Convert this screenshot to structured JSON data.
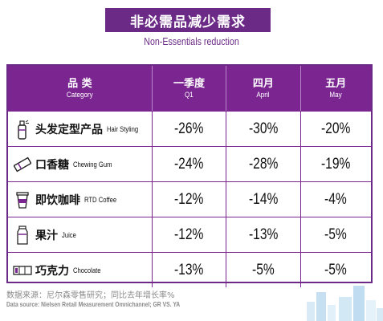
{
  "title": "非必需品减少需求",
  "subtitle": "Non-Essentials reduction",
  "table": {
    "headers": [
      {
        "zh": "品 类",
        "en": "Category"
      },
      {
        "zh": "一季度",
        "en": "Q1"
      },
      {
        "zh": "四月",
        "en": "April"
      },
      {
        "zh": "五月",
        "en": "May"
      }
    ],
    "rows": [
      {
        "icon": "hair-spray-icon",
        "zh": "头发定型产品",
        "en": "Hair Styling",
        "q1": "-26%",
        "april": "-30%",
        "may": "-20%"
      },
      {
        "icon": "chewing-gum-icon",
        "zh": "口香糖",
        "en": "Chewing Gum",
        "q1": "-24%",
        "april": "-28%",
        "may": "-19%"
      },
      {
        "icon": "coffee-cup-icon",
        "zh": "即饮咖啡",
        "en": "RTD Coffee",
        "q1": "-12%",
        "april": "-14%",
        "may": "-4%"
      },
      {
        "icon": "juice-bottle-icon",
        "zh": "果汁",
        "en": "Juice",
        "q1": "-12%",
        "april": "-13%",
        "may": "-5%"
      },
      {
        "icon": "chocolate-bar-icon",
        "zh": "巧克力",
        "en": "Chocolate",
        "q1": "-13%",
        "april": "-5%",
        "may": "-5%"
      }
    ]
  },
  "source": {
    "zh": "数据来源：尼尔森零售研究；同比去年增长率%",
    "en": "Data source: Nielsen Retail Measurement Omnichannel; GR VS. YA"
  },
  "colors": {
    "accent": "#6b2a86",
    "header_bg": "#7b2591",
    "deco": "#cfe6f5"
  }
}
